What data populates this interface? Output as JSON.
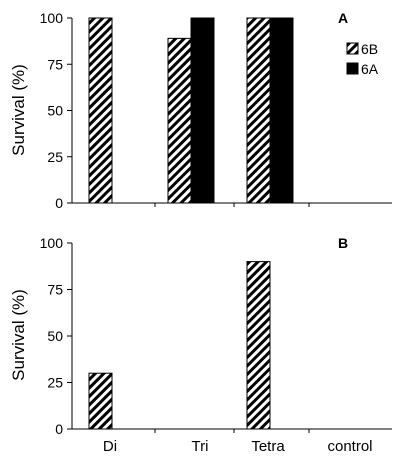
{
  "chart_data": [
    {
      "type": "bar",
      "panel_label": "A",
      "ylabel": "Survival (%)",
      "ylim": [
        0,
        100
      ],
      "yticks": [
        0,
        25,
        50,
        75,
        100
      ],
      "categories": [
        "Di",
        "Tri",
        "Tetra",
        "control"
      ],
      "show_category_labels": false,
      "legend": {
        "position": "top-right",
        "entries": [
          "6B",
          "6A"
        ]
      },
      "series": [
        {
          "name": "6B",
          "pattern": "hatched",
          "values": [
            100,
            89,
            100,
            null
          ]
        },
        {
          "name": "6A",
          "pattern": "solid",
          "color": "#000000",
          "values": [
            null,
            100,
            100,
            null
          ]
        }
      ]
    },
    {
      "type": "bar",
      "panel_label": "B",
      "ylabel": "Survival (%)",
      "ylim": [
        0,
        100
      ],
      "yticks": [
        0,
        25,
        50,
        75,
        100
      ],
      "categories": [
        "Di",
        "Tri",
        "Tetra",
        "control"
      ],
      "show_category_labels": true,
      "series": [
        {
          "name": "6B",
          "pattern": "hatched",
          "values": [
            30,
            null,
            90,
            null
          ]
        }
      ]
    }
  ]
}
